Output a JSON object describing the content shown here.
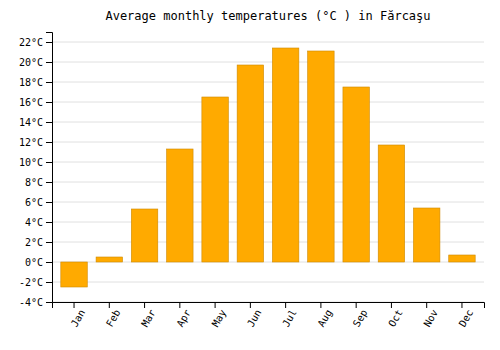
{
  "chart_data": {
    "type": "bar",
    "title": "Average monthly temperatures (°C ) in Fărcaşu",
    "categories": [
      "Jan",
      "Feb",
      "Mar",
      "Apr",
      "May",
      "Jun",
      "Jul",
      "Aug",
      "Sep",
      "Oct",
      "Nov",
      "Dec"
    ],
    "values": [
      -2.5,
      0.5,
      5.3,
      11.3,
      16.5,
      19.7,
      21.4,
      21.1,
      17.5,
      11.7,
      5.4,
      0.7
    ],
    "color": "#FFAA00",
    "ylim": [
      -4,
      23
    ],
    "yticks": [
      {
        "value": -4,
        "label": "-4°C"
      },
      {
        "value": -2,
        "label": "-2°C"
      },
      {
        "value": 0,
        "label": "0°C"
      },
      {
        "value": 2,
        "label": "2°C"
      },
      {
        "value": 4,
        "label": "4°C"
      },
      {
        "value": 6,
        "label": "6°C"
      },
      {
        "value": 8,
        "label": "8°C"
      },
      {
        "value": 10,
        "label": "10°C"
      },
      {
        "value": 12,
        "label": "12°C"
      },
      {
        "value": 14,
        "label": "14°C"
      },
      {
        "value": 16,
        "label": "16°C"
      },
      {
        "value": 18,
        "label": "18°C"
      },
      {
        "value": 20,
        "label": "20°C"
      },
      {
        "value": 22,
        "label": "22°C"
      }
    ],
    "grid": true
  }
}
